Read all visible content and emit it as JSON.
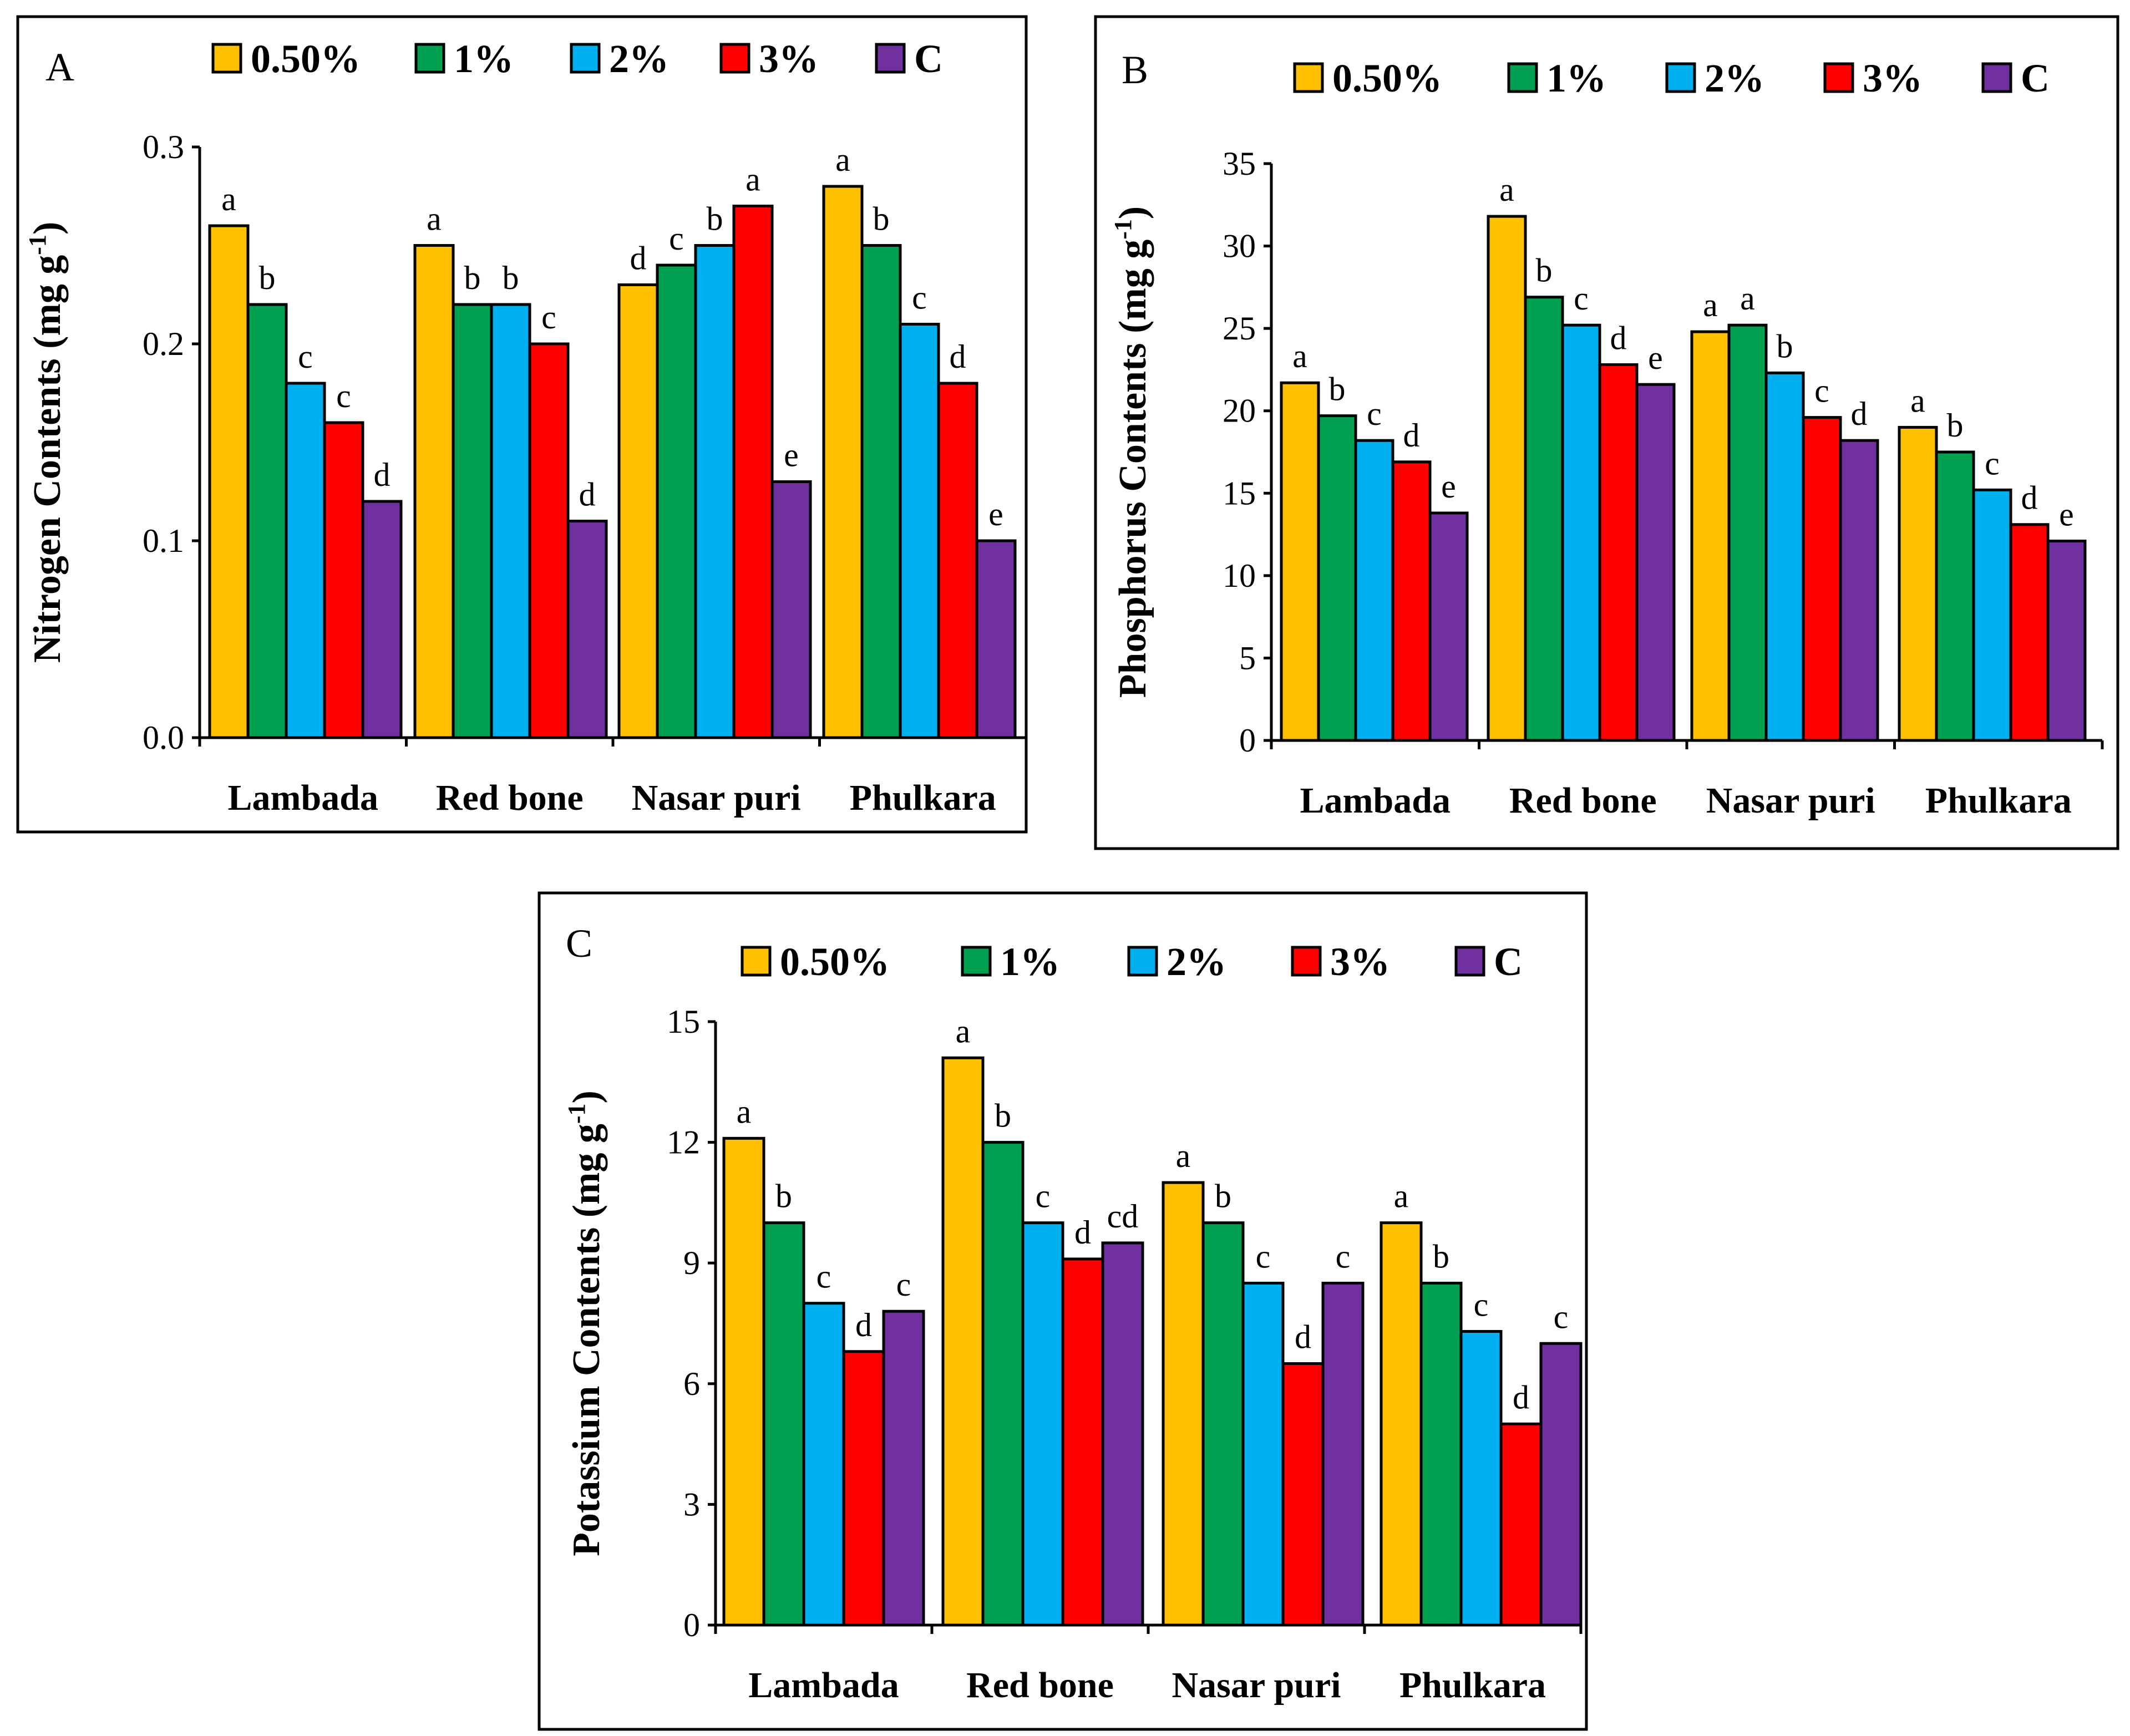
{
  "legend": [
    {
      "label": "0.50%",
      "color": "#FFC000"
    },
    {
      "label": "1%",
      "color": "#00A050"
    },
    {
      "label": "2%",
      "color": "#00B0F0"
    },
    {
      "label": "3%",
      "color": "#FF0000"
    },
    {
      "label": "C",
      "color": "#7030A0"
    }
  ],
  "chart_data": [
    {
      "type": "bar",
      "panel": "A",
      "ylabel_main": "Nitrogen Contents (mg g",
      "ylabel_sup": "-1",
      "ylabel_end": ")",
      "categories": [
        "Lambada",
        "Red bone",
        "Nasar puri",
        "Phulkara"
      ],
      "ylim": [
        0,
        0.3
      ],
      "yticks": [
        0.0,
        0.1,
        0.2,
        0.3
      ],
      "ytick_labels": [
        "0.0",
        "0.1",
        "0.2",
        "0.3"
      ],
      "series": [
        {
          "name": "0.50%",
          "values": [
            0.26,
            0.25,
            0.23,
            0.28
          ],
          "letters": [
            "a",
            "a",
            "d",
            "a"
          ]
        },
        {
          "name": "1%",
          "values": [
            0.22,
            0.22,
            0.24,
            0.25
          ],
          "letters": [
            "b",
            "b",
            "c",
            "b"
          ]
        },
        {
          "name": "2%",
          "values": [
            0.18,
            0.22,
            0.25,
            0.21
          ],
          "letters": [
            "c",
            "b",
            "b",
            "c"
          ]
        },
        {
          "name": "3%",
          "values": [
            0.16,
            0.2,
            0.27,
            0.18
          ],
          "letters": [
            "c",
            "c",
            "a",
            "d"
          ]
        },
        {
          "name": "C",
          "values": [
            0.12,
            0.11,
            0.13,
            0.1
          ],
          "letters": [
            "d",
            "d",
            "e",
            "e"
          ]
        }
      ]
    },
    {
      "type": "bar",
      "panel": "B",
      "ylabel_main": "Phosphorus Contents (mg g",
      "ylabel_sup": "-1",
      "ylabel_end": ")",
      "categories": [
        "Lambada",
        "Red bone",
        "Nasar puri",
        "Phulkara"
      ],
      "ylim": [
        0,
        35
      ],
      "yticks": [
        0,
        5,
        10,
        15,
        20,
        25,
        30,
        35
      ],
      "ytick_labels": [
        "0",
        "5",
        "10",
        "15",
        "20",
        "25",
        "30",
        "35"
      ],
      "series": [
        {
          "name": "0.50%",
          "values": [
            21.7,
            31.8,
            24.8,
            19.0
          ],
          "letters": [
            "a",
            "a",
            "a",
            "a"
          ]
        },
        {
          "name": "1%",
          "values": [
            19.7,
            26.9,
            25.2,
            17.5
          ],
          "letters": [
            "b",
            "b",
            "a",
            "b"
          ]
        },
        {
          "name": "2%",
          "values": [
            18.2,
            25.2,
            22.3,
            15.2
          ],
          "letters": [
            "c",
            "c",
            "b",
            "c"
          ]
        },
        {
          "name": "3%",
          "values": [
            16.9,
            22.8,
            19.6,
            13.1
          ],
          "letters": [
            "d",
            "d",
            "c",
            "d"
          ]
        },
        {
          "name": "C",
          "values": [
            13.8,
            21.6,
            18.2,
            12.1
          ],
          "letters": [
            "e",
            "e",
            "d",
            "e"
          ]
        }
      ]
    },
    {
      "type": "bar",
      "panel": "C",
      "ylabel_main": "Potassium Contents (mg g",
      "ylabel_sup": "-1",
      "ylabel_end": ")",
      "categories": [
        "Lambada",
        "Red bone",
        "Nasar puri",
        "Phulkara"
      ],
      "ylim": [
        0,
        15
      ],
      "yticks": [
        0,
        3,
        6,
        9,
        12,
        15
      ],
      "ytick_labels": [
        "0",
        "3",
        "6",
        "9",
        "12",
        "15"
      ],
      "series": [
        {
          "name": "0.50%",
          "values": [
            12.1,
            14.1,
            11.0,
            10.0
          ],
          "letters": [
            "a",
            "a",
            "a",
            "a"
          ]
        },
        {
          "name": "1%",
          "values": [
            10.0,
            12.0,
            10.0,
            8.5
          ],
          "letters": [
            "b",
            "b",
            "b",
            "b"
          ]
        },
        {
          "name": "2%",
          "values": [
            8.0,
            10.0,
            8.5,
            7.3
          ],
          "letters": [
            "c",
            "c",
            "c",
            "c"
          ]
        },
        {
          "name": "3%",
          "values": [
            6.8,
            9.1,
            6.5,
            5.0
          ],
          "letters": [
            "d",
            "d",
            "d",
            "d"
          ]
        },
        {
          "name": "C",
          "values": [
            7.8,
            9.5,
            8.5,
            7.0
          ],
          "letters": [
            "c",
            "cd",
            "c",
            "c"
          ]
        }
      ]
    }
  ]
}
